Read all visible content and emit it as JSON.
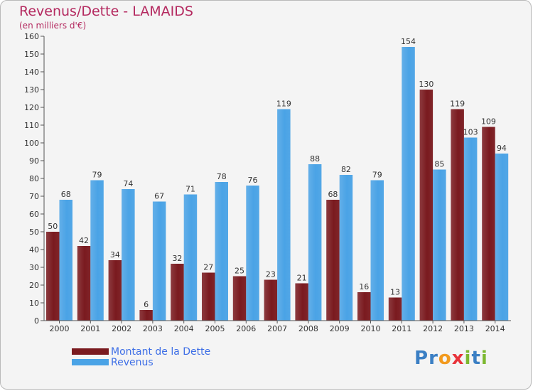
{
  "chart_data": {
    "type": "bar",
    "title": "Revenus/Dette - LAMAIDS",
    "subtitle": "(en milliers d'€)",
    "categories": [
      "2000",
      "2001",
      "2002",
      "2003",
      "2004",
      "2005",
      "2006",
      "2007",
      "2008",
      "2009",
      "2010",
      "2011",
      "2012",
      "2013",
      "2014"
    ],
    "series": [
      {
        "name": "Montant de la Dette",
        "color": "#7a1a1f",
        "values": [
          50,
          42,
          34,
          6,
          32,
          27,
          25,
          23,
          21,
          68,
          16,
          13,
          130,
          119,
          109
        ]
      },
      {
        "name": "Revenus",
        "color": "#4aa3e6",
        "values": [
          68,
          79,
          74,
          67,
          71,
          78,
          76,
          119,
          88,
          82,
          79,
          154,
          85,
          103,
          94
        ]
      }
    ],
    "ylim": [
      0,
      160
    ],
    "ytick_step": 10,
    "grid": false,
    "legend_position": "bottom-left"
  },
  "logo": {
    "letters": [
      {
        "ch": "P",
        "color": "#3b7fc4"
      },
      {
        "ch": "r",
        "color": "#3b7fc4"
      },
      {
        "ch": "o",
        "color": "#f29a1e"
      },
      {
        "ch": "x",
        "color": "#e8333a"
      },
      {
        "ch": "i",
        "color": "#7cb82f"
      },
      {
        "ch": "t",
        "color": "#3b7fc4"
      },
      {
        "ch": "i",
        "color": "#7cb82f"
      }
    ]
  }
}
